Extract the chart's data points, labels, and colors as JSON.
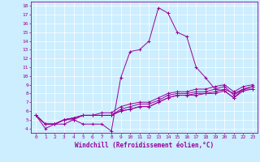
{
  "xlabel": "Windchill (Refroidissement éolien,°C)",
  "background_color": "#cceeff",
  "line_color": "#990099",
  "grid_color": "#ffffff",
  "xlim": [
    -0.5,
    23.5
  ],
  "ylim": [
    3.5,
    18.5
  ],
  "xticks": [
    0,
    1,
    2,
    3,
    4,
    5,
    6,
    7,
    8,
    9,
    10,
    11,
    12,
    13,
    14,
    15,
    16,
    17,
    18,
    19,
    20,
    21,
    22,
    23
  ],
  "yticks": [
    4,
    5,
    6,
    7,
    8,
    9,
    10,
    11,
    12,
    13,
    14,
    15,
    16,
    17,
    18
  ],
  "series": [
    [
      5.5,
      4.0,
      4.5,
      4.5,
      5.0,
      4.5,
      4.5,
      4.5,
      3.7,
      9.8,
      12.8,
      13.0,
      14.0,
      17.8,
      17.2,
      15.0,
      14.5,
      11.0,
      9.8,
      8.5,
      8.3,
      7.5,
      8.5,
      8.5
    ],
    [
      5.5,
      4.5,
      4.5,
      5.0,
      5.0,
      5.5,
      5.5,
      5.5,
      5.5,
      6.0,
      6.2,
      6.5,
      6.5,
      7.0,
      7.5,
      7.8,
      7.8,
      8.0,
      8.0,
      8.2,
      8.5,
      8.0,
      8.5,
      8.8
    ],
    [
      5.5,
      4.5,
      4.5,
      5.0,
      5.2,
      5.5,
      5.5,
      5.8,
      5.8,
      6.5,
      6.8,
      7.0,
      7.0,
      7.5,
      8.0,
      8.2,
      8.2,
      8.5,
      8.5,
      8.8,
      9.0,
      8.2,
      8.8,
      9.0
    ],
    [
      5.5,
      4.5,
      4.5,
      5.0,
      5.2,
      5.5,
      5.5,
      5.5,
      5.5,
      6.2,
      6.5,
      6.8,
      6.8,
      7.2,
      7.8,
      8.0,
      8.0,
      8.2,
      8.2,
      8.5,
      8.8,
      7.8,
      8.5,
      8.8
    ],
    [
      5.5,
      4.5,
      4.5,
      5.0,
      5.2,
      5.5,
      5.5,
      5.5,
      5.5,
      6.0,
      6.2,
      6.5,
      6.5,
      7.0,
      7.5,
      7.8,
      7.8,
      7.8,
      8.0,
      8.0,
      8.3,
      7.5,
      8.3,
      8.5
    ]
  ]
}
